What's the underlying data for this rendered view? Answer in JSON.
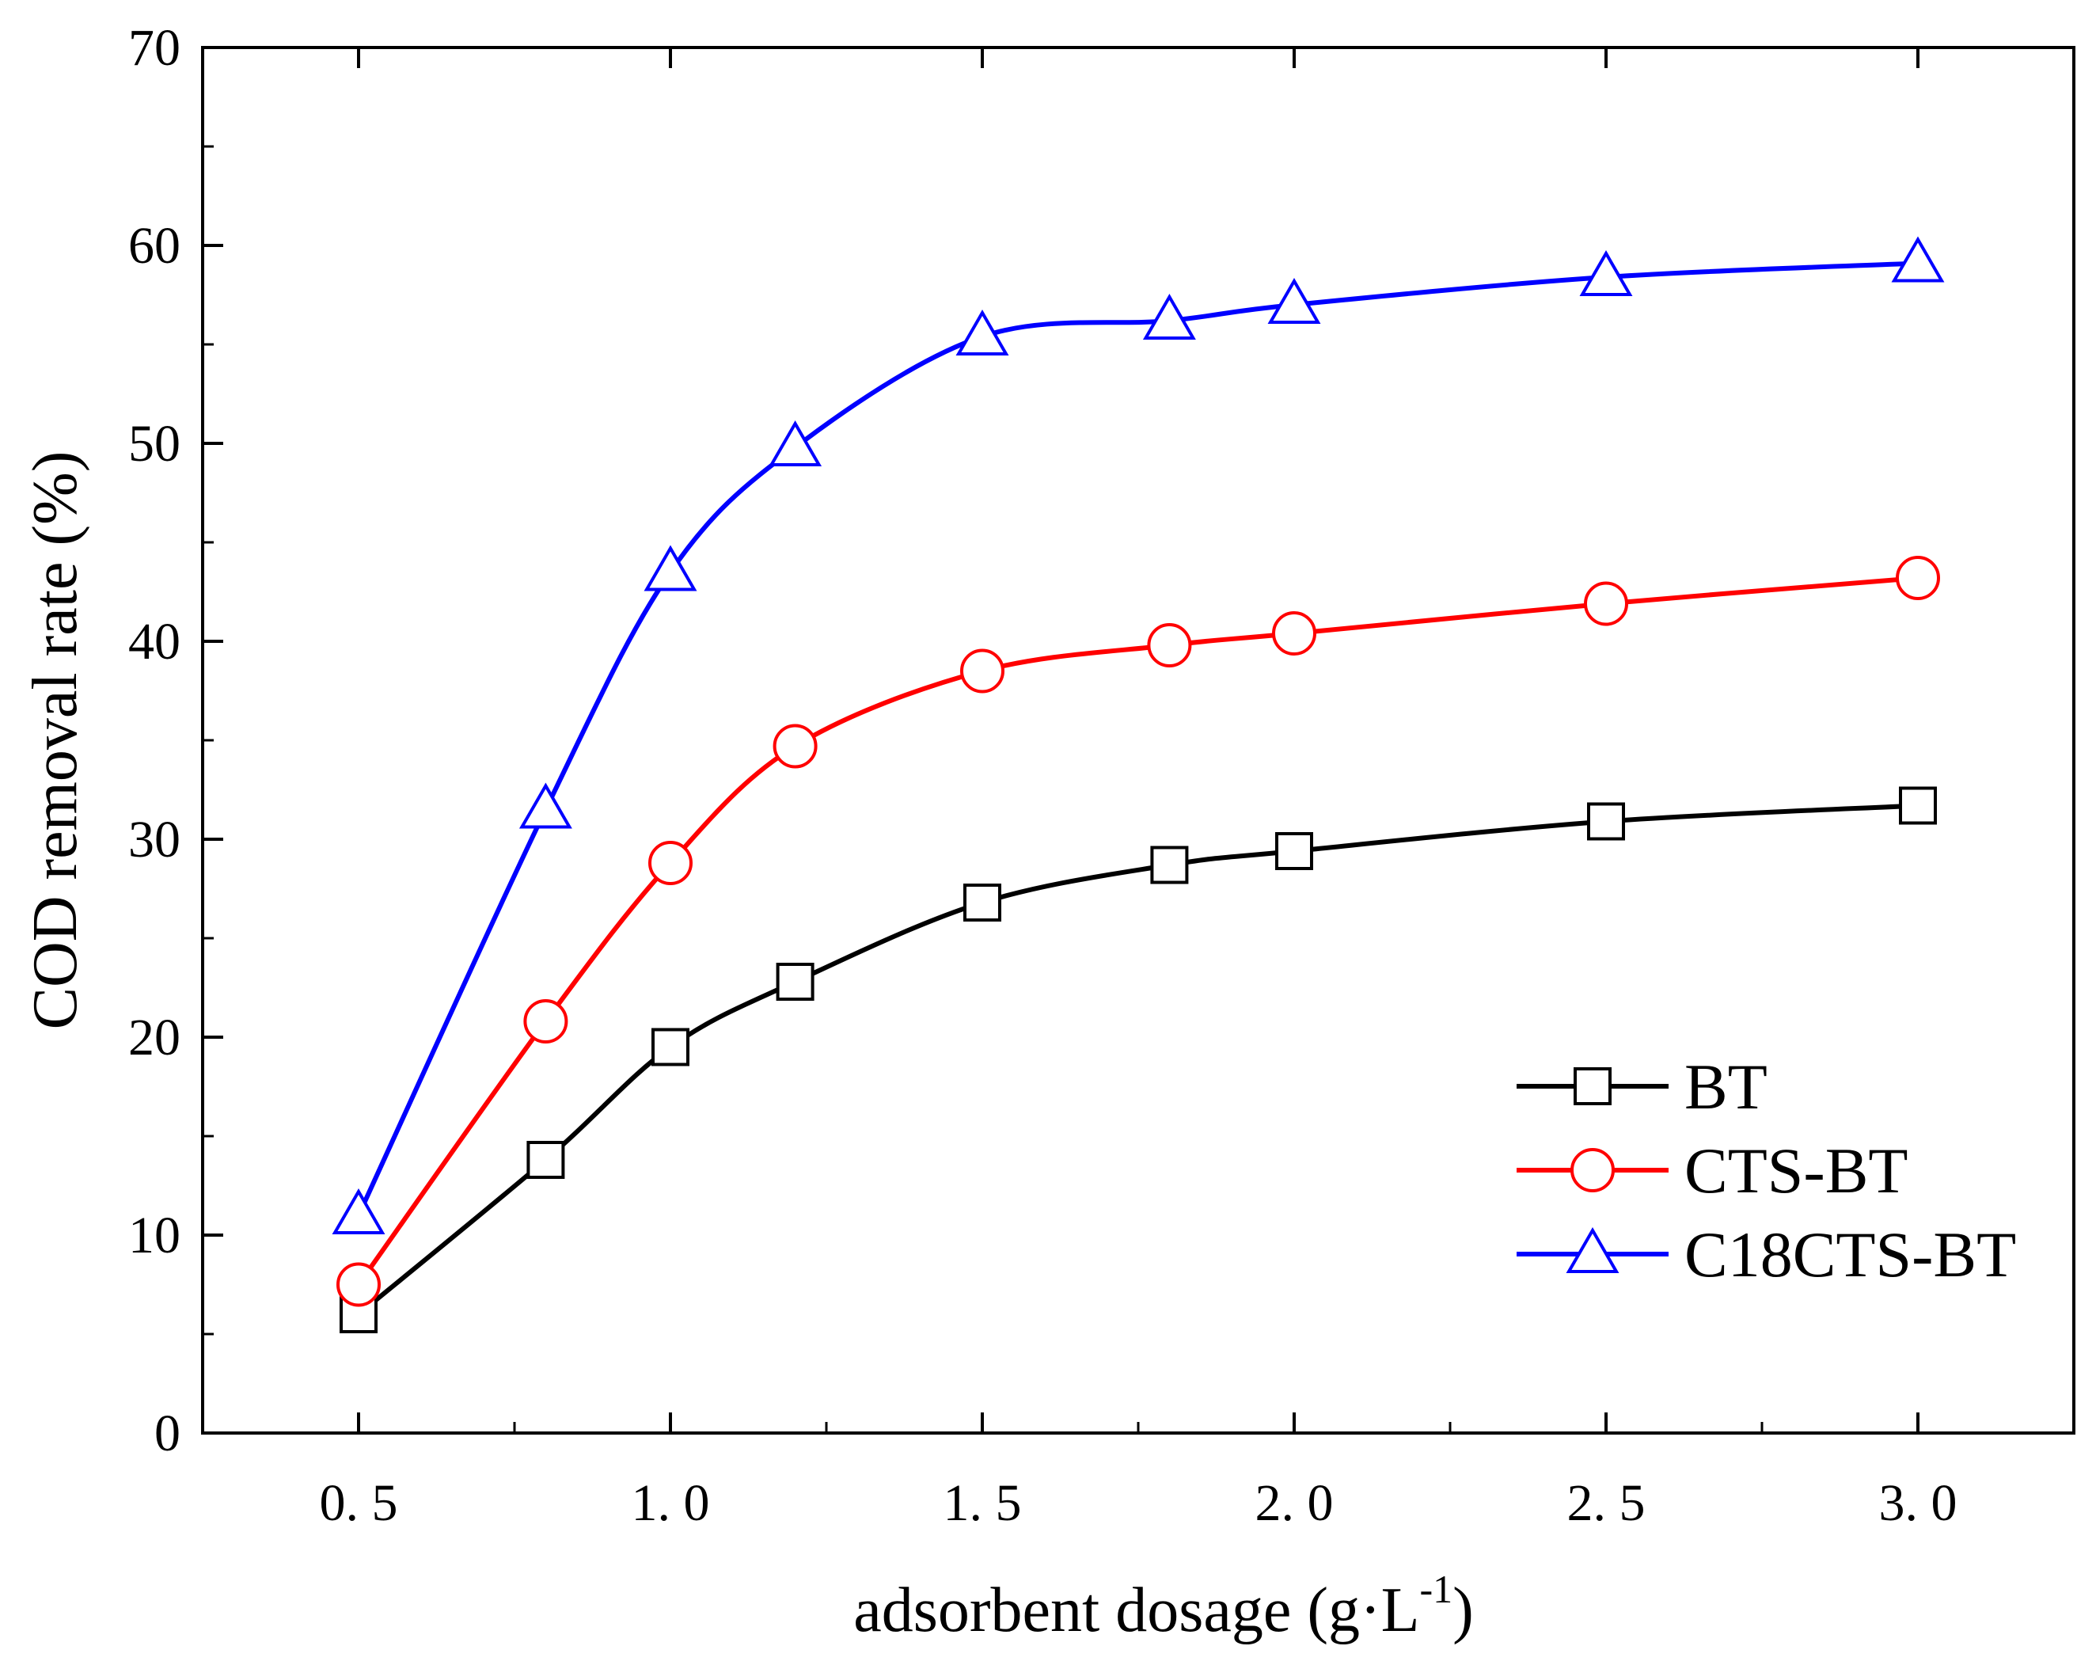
{
  "chart_data": {
    "type": "line",
    "title": "",
    "xlabel": "adsorbent dosage (g·L",
    "xlabel_sup": "-1",
    "xlabel_tail": ")",
    "ylabel": "COD removal rate (%)",
    "xlim": [
      0.25,
      3.25
    ],
    "ylim": [
      0,
      70
    ],
    "x_ticks": [
      0.5,
      1.0,
      1.5,
      2.0,
      2.5,
      3.0
    ],
    "x_tick_labels": [
      "0. 5",
      "1. 0",
      "1. 5",
      "2. 0",
      "2. 5",
      "3. 0"
    ],
    "y_ticks": [
      0,
      10,
      20,
      30,
      40,
      50,
      60,
      70
    ],
    "y_tick_labels": [
      "0",
      "10",
      "20",
      "30",
      "40",
      "50",
      "60",
      "70"
    ],
    "x": [
      0.5,
      0.8,
      1.0,
      1.2,
      1.5,
      1.8,
      2.0,
      2.5,
      3.0
    ],
    "legend_position": "bottom-right",
    "grid": false,
    "series": [
      {
        "name": "BT",
        "color": "#000000",
        "marker": "square",
        "values": [
          6.0,
          13.8,
          19.5,
          22.8,
          26.8,
          28.7,
          29.4,
          30.9,
          31.7
        ]
      },
      {
        "name": "CTS-BT",
        "color": "#ff0000",
        "marker": "circle",
        "values": [
          7.5,
          20.8,
          28.8,
          34.7,
          38.5,
          39.8,
          40.4,
          41.9,
          43.2
        ]
      },
      {
        "name": "C18CTS-BT",
        "color": "#0000ff",
        "marker": "triangle",
        "values": [
          11.0,
          31.5,
          43.5,
          49.8,
          55.4,
          56.2,
          57.0,
          58.4,
          59.1
        ]
      }
    ]
  }
}
